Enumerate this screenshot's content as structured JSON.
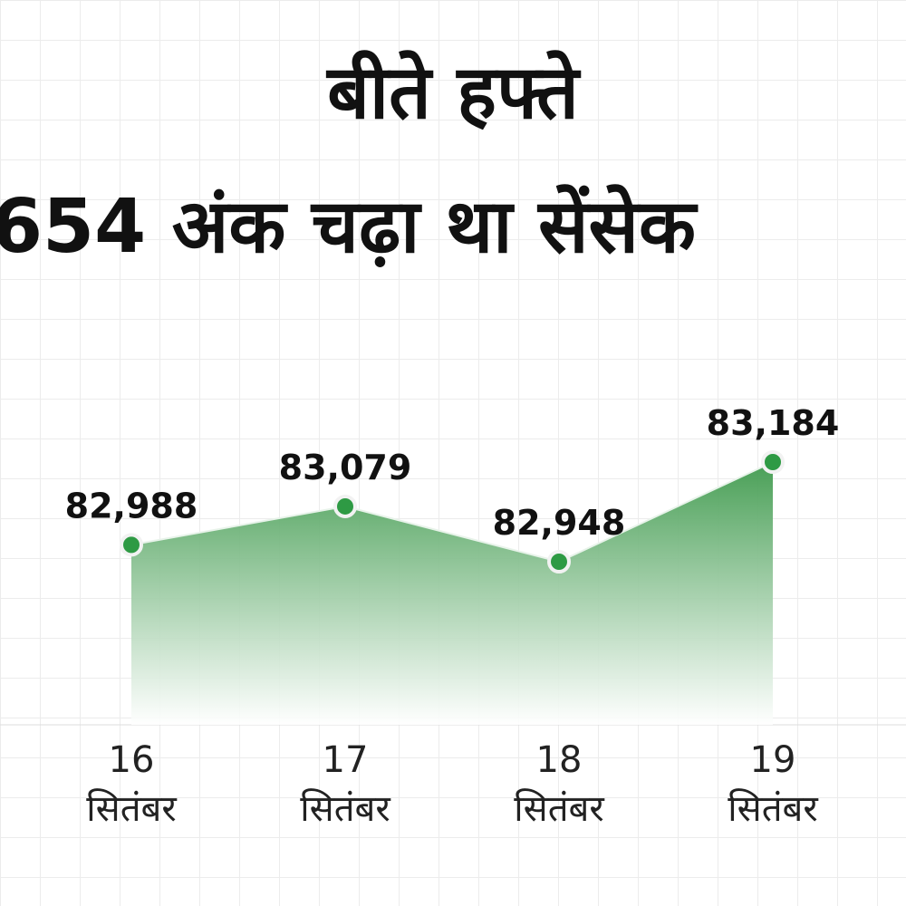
{
  "chart_data": {
    "type": "area",
    "title": [
      "बीते हफ्ते",
      "654 अंक चढ़ा था सेंसेक"
    ],
    "categories": [
      "16 सितंबर",
      "17 सितंबर",
      "18 सितंबर",
      "19 सितंबर"
    ],
    "values": [
      82988,
      83079,
      82948,
      83184
    ],
    "value_labels": [
      "82,988",
      "83,079",
      "82,948",
      "83,184"
    ],
    "color": "#2e9a44"
  }
}
